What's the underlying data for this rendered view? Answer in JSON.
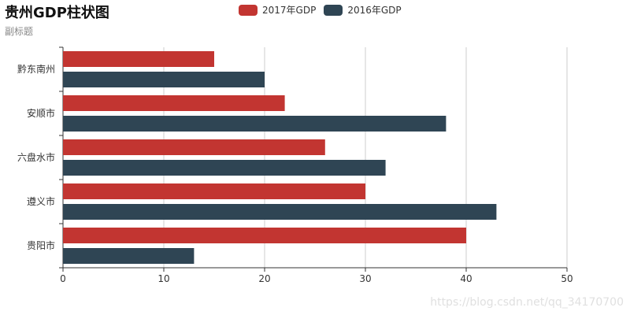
{
  "chart_data": {
    "type": "bar",
    "orientation": "horizontal",
    "title": "贵州GDP柱状图",
    "subtitle": "副标题",
    "categories": [
      "贵阳市",
      "遵义市",
      "六盘水市",
      "安顺市",
      "黔东南州"
    ],
    "series": [
      {
        "name": "2017年GDP",
        "color": "#c23531",
        "values": [
          40,
          30,
          26,
          22,
          15
        ]
      },
      {
        "name": "2016年GDP",
        "color": "#2f4554",
        "values": [
          13,
          43,
          32,
          38,
          20
        ]
      }
    ],
    "xlim": [
      0,
      50
    ],
    "xticks": [
      0,
      10,
      20,
      30,
      40,
      50
    ],
    "grid": "vertical",
    "legend_position": "top-center"
  },
  "watermark": "https://blog.csdn.net/qq_34170700"
}
